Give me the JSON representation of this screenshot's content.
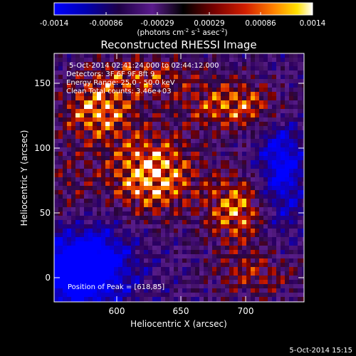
{
  "colorbar": {
    "ticks": [
      "-0.0014",
      "-0.00086",
      "-0.00029",
      "0.00029",
      "0.00086",
      "0.0014"
    ],
    "units_prefix": "(photons cm",
    "units_exp1": "-2",
    "units_mid": " s",
    "units_exp2": "-1",
    "units_mid2": " asec",
    "units_exp3": "-2",
    "units_suffix": ")",
    "colors": [
      "#0000ff",
      "#0000c8",
      "#2a0050",
      "#5a1b8c",
      "#000000",
      "#7a0000",
      "#d21e00",
      "#ff7a00",
      "#ffd200",
      "#ffffff"
    ]
  },
  "image": {
    "title": "Reconstructed RHESSI Image",
    "info_lines": [
      "5-Oct-2014 02:41:24.000 to 02:44:12.000",
      "Detectors: 3F 6F 9F 8ft 9",
      "Energy Range: 25.0 - 50.0 keV",
      "Clean     Total counts: 3.46e+03"
    ],
    "peak_label": "Position of Peak = [618,85]",
    "xlabel": "Heliocentric X (arcsec)",
    "ylabel": "Heliocentric Y (arcsec)",
    "x_ticks": [
      "600",
      "650",
      "700"
    ],
    "y_ticks": [
      "0",
      "50",
      "100",
      "150"
    ],
    "xlim": [
      552,
      740
    ],
    "ylim": [
      -18,
      172
    ]
  },
  "footer": {
    "timestamp": "5-Oct-2014 15:15"
  }
}
